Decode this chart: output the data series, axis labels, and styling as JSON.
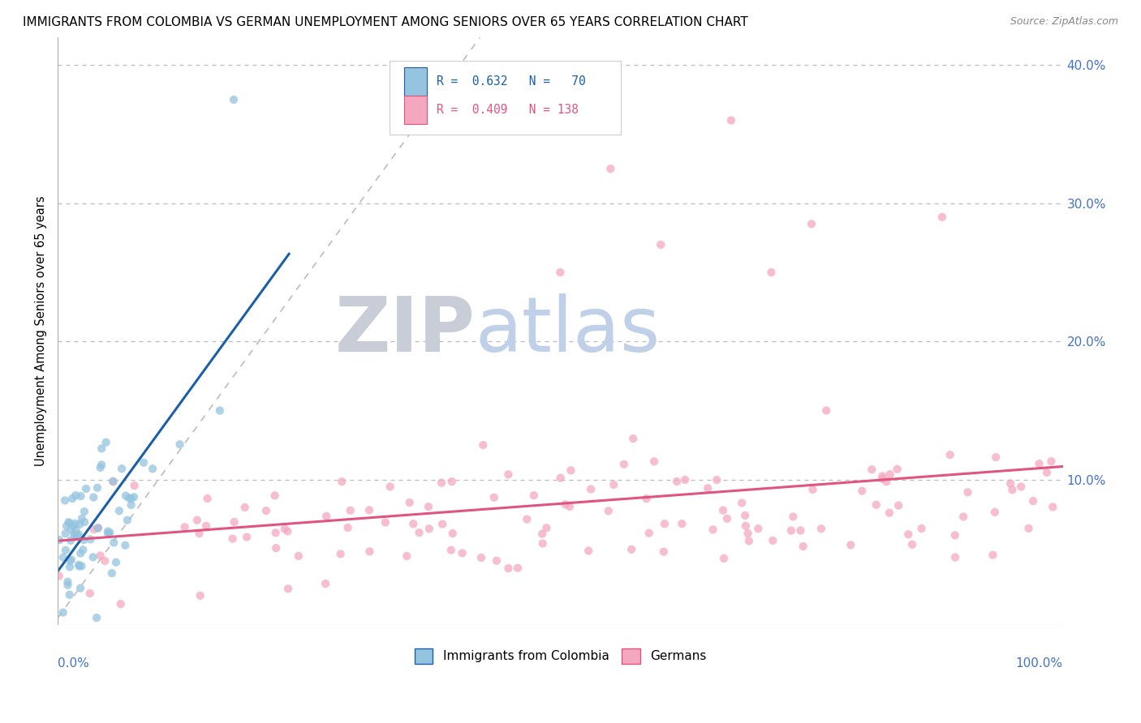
{
  "title": "IMMIGRANTS FROM COLOMBIA VS GERMAN UNEMPLOYMENT AMONG SENIORS OVER 65 YEARS CORRELATION CHART",
  "source": "Source: ZipAtlas.com",
  "ylabel": "Unemployment Among Seniors over 65 years",
  "legend_blue_label": "Immigrants from Colombia",
  "legend_pink_label": "Germans",
  "blue_color": "#94c4e0",
  "pink_color": "#f4a8c0",
  "blue_line_color": "#1a5fa8",
  "pink_line_color": "#e05580",
  "watermark_zip_color": "#c8cdd8",
  "watermark_atlas_color": "#bfd0e8",
  "xlim": [
    0.0,
    1.0
  ],
  "ylim": [
    -0.005,
    0.42
  ],
  "yticks": [
    0.0,
    0.1,
    0.2,
    0.3,
    0.4
  ],
  "ytick_labels": [
    "",
    "10.0%",
    "20.0%",
    "30.0%",
    "40.0%"
  ],
  "background_color": "#ffffff",
  "grid_color": "#bbbbbb"
}
